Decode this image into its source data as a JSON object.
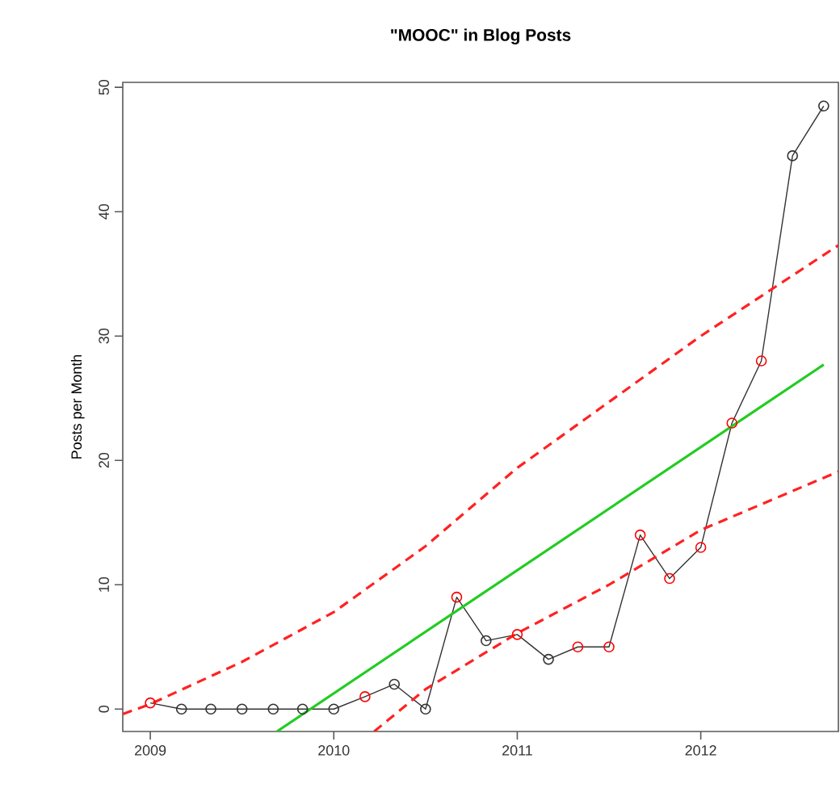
{
  "chart_data": {
    "type": "line",
    "title": "\"MOOC\" in Blog Posts",
    "ylabel": "Posts per Month",
    "xlim": [
      2008.85,
      2012.75
    ],
    "ylim": [
      -1.8,
      50.4
    ],
    "xticks": [
      2009,
      2010,
      2011,
      2012
    ],
    "yticks": [
      0,
      10,
      20,
      30,
      40,
      50
    ],
    "grid": false,
    "series": [
      {
        "color": "#333333",
        "marker": "circle",
        "line_style": "solid",
        "x": [
          2009,
          2009.17,
          2009.33,
          2009.5,
          2009.67,
          2009.83,
          2010,
          2010.17,
          2010.33,
          2010.5,
          2010.67,
          2010.83,
          2011,
          2011.17,
          2011.33,
          2011.5,
          2011.67,
          2011.83,
          2012,
          2012.17,
          2012.33,
          2012.5,
          2012.67
        ],
        "values": [
          0.5,
          0,
          0,
          0,
          0,
          0,
          0,
          1,
          2,
          0,
          9,
          5.5,
          6,
          4,
          5,
          5,
          14,
          10.5,
          13,
          23,
          28,
          44.5,
          48.5
        ],
        "colors": [
          "#ff0000",
          "#333333",
          "#333333",
          "#333333",
          "#333333",
          "#333333",
          "#333333",
          "#ff0000",
          "#333333",
          "#333333",
          "#ff0000",
          "#333333",
          "#ff0000",
          "#333333",
          "#ff0000",
          "#ff0000",
          "#ff0000",
          "#ff0000",
          "#ff0000",
          "#ff0000",
          "#ff0000",
          "#333333",
          "#333333"
        ]
      },
      {
        "color": "#22cc22",
        "marker": "none",
        "line_style": "solid",
        "x": [
          2009.69,
          2012.67
        ],
        "values": [
          -1.8,
          27.7
        ]
      },
      {
        "color": "#ff2222",
        "marker": "none",
        "line_style": "dashed",
        "x": [
          2008.85,
          2009,
          2009.5,
          2010,
          2010.5,
          2011,
          2011.5,
          2012,
          2012.75
        ],
        "values": [
          -0.4,
          0.4,
          3.8,
          7.8,
          13.1,
          19.4,
          24.7,
          30.0,
          37.3
        ]
      },
      {
        "color": "#ff2222",
        "marker": "none",
        "line_style": "dashed",
        "x": [
          2010.22,
          2010.5,
          2011,
          2011.5,
          2012,
          2012.75
        ],
        "values": [
          -1.8,
          1.6,
          6.1,
          10.0,
          14.4,
          19.1
        ]
      }
    ]
  }
}
